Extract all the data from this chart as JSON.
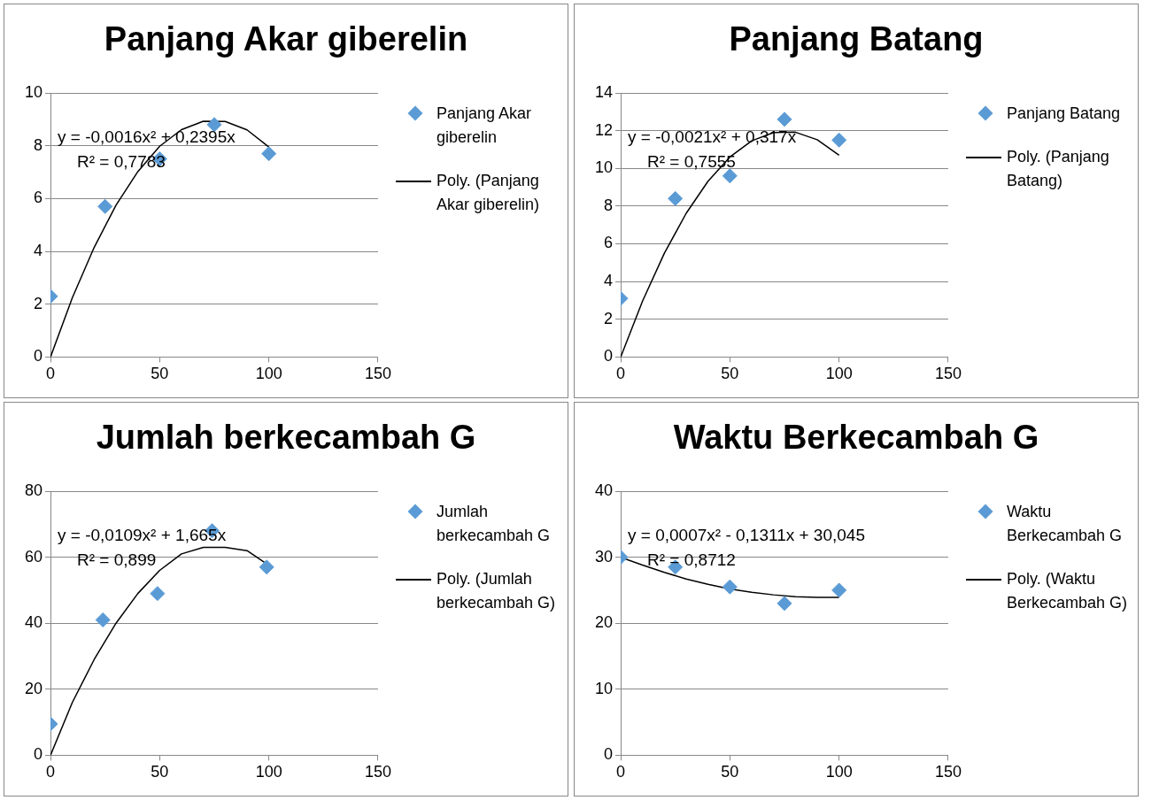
{
  "chart_data": [
    {
      "type": "scatter",
      "title": "Panjang  Akar giberelin",
      "xlim": [
        0,
        150
      ],
      "xticks": [
        0,
        50,
        100,
        150
      ],
      "ylim": [
        0,
        10
      ],
      "yticks": [
        0,
        2,
        4,
        6,
        8,
        10
      ],
      "grid": "y",
      "legend": "right",
      "marker": "diamond",
      "annotations": [
        "y = -0,0016x² + 0,2395x",
        "R² = 0,7783"
      ],
      "series": [
        {
          "name": "Panjang Akar giberelin",
          "type": "scatter",
          "color": "#5b9bd5",
          "x": [
            0,
            25,
            50,
            75,
            100
          ],
          "values": [
            2.3,
            5.7,
            7.5,
            8.8,
            7.7
          ]
        },
        {
          "name": "Poly. (Panjang Akar giberelin)",
          "type": "line",
          "color": "#000000",
          "marker": "none",
          "line_style": "solid",
          "x": [
            0,
            10,
            20,
            30,
            40,
            50,
            60,
            70,
            80,
            90,
            100
          ],
          "values": [
            0,
            2.24,
            4.15,
            5.75,
            7.02,
            7.98,
            8.61,
            8.93,
            8.92,
            8.6,
            7.95
          ]
        }
      ]
    },
    {
      "type": "scatter",
      "title": "Panjang Batang",
      "xlim": [
        0,
        150
      ],
      "xticks": [
        0,
        50,
        100,
        150
      ],
      "ylim": [
        0,
        14
      ],
      "yticks": [
        0,
        2,
        4,
        6,
        8,
        10,
        12,
        14
      ],
      "grid": "y",
      "legend": "right",
      "marker": "diamond",
      "annotations": [
        "y = -0,0021x² + 0,317x",
        "R² = 0,7555"
      ],
      "series": [
        {
          "name": "Panjang Batang",
          "type": "scatter",
          "color": "#5b9bd5",
          "x": [
            0,
            25,
            50,
            75,
            100
          ],
          "values": [
            3.1,
            8.4,
            9.6,
            12.6,
            11.5
          ]
        },
        {
          "name": "Poly. (Panjang Batang)",
          "type": "line",
          "color": "#000000",
          "marker": "none",
          "line_style": "solid",
          "x": [
            0,
            10,
            20,
            30,
            40,
            50,
            60,
            70,
            80,
            90,
            100
          ],
          "values": [
            0,
            2.96,
            5.5,
            7.62,
            9.32,
            10.6,
            11.46,
            11.9,
            11.92,
            11.52,
            10.7
          ]
        }
      ]
    },
    {
      "type": "scatter",
      "title": "Jumlah berkecambah G",
      "xlim": [
        0,
        150
      ],
      "xticks": [
        0,
        50,
        100,
        150
      ],
      "ylim": [
        0,
        80
      ],
      "yticks": [
        0,
        20,
        40,
        60,
        80
      ],
      "grid": "y",
      "legend": "right",
      "marker": "diamond",
      "annotations": [
        "y = -0,0109x² + 1,665x",
        "R² = 0,899"
      ],
      "series": [
        {
          "name": "Jumlah berkecambah G",
          "type": "scatter",
          "color": "#5b9bd5",
          "x": [
            0,
            24,
            49,
            74,
            99
          ],
          "values": [
            9.5,
            41,
            49,
            68,
            57
          ]
        },
        {
          "name": "Poly. (Jumlah berkecambah G)",
          "type": "line",
          "color": "#000000",
          "marker": "none",
          "line_style": "solid",
          "x": [
            0,
            10,
            20,
            30,
            40,
            50,
            60,
            70,
            80,
            90,
            99
          ],
          "values": [
            0,
            16,
            29,
            40,
            49,
            56,
            61,
            63,
            63,
            62,
            58
          ]
        }
      ]
    },
    {
      "type": "scatter",
      "title": "Waktu Berkecambah G",
      "xlim": [
        0,
        150
      ],
      "xticks": [
        0,
        50,
        100,
        150
      ],
      "ylim": [
        0,
        40
      ],
      "yticks": [
        0,
        10,
        20,
        30,
        40
      ],
      "grid": "y",
      "legend": "right",
      "marker": "diamond",
      "annotations": [
        "y = 0,0007x² - 0,1311x + 30,045",
        "R² = 0,8712"
      ],
      "series": [
        {
          "name": "Waktu Berkecambah G",
          "type": "scatter",
          "color": "#5b9bd5",
          "x": [
            0,
            25,
            50,
            75,
            100
          ],
          "values": [
            30,
            28.5,
            25.5,
            23,
            25
          ]
        },
        {
          "name": "Poly. (Waktu Berkecambah G)",
          "type": "line",
          "color": "#000000",
          "marker": "none",
          "line_style": "solid",
          "x": [
            0,
            10,
            20,
            30,
            40,
            50,
            60,
            70,
            80,
            90,
            100
          ],
          "values": [
            30,
            28.8,
            27.7,
            26.7,
            25.9,
            25.2,
            24.7,
            24.3,
            24,
            23.9,
            23.9
          ]
        }
      ]
    }
  ]
}
